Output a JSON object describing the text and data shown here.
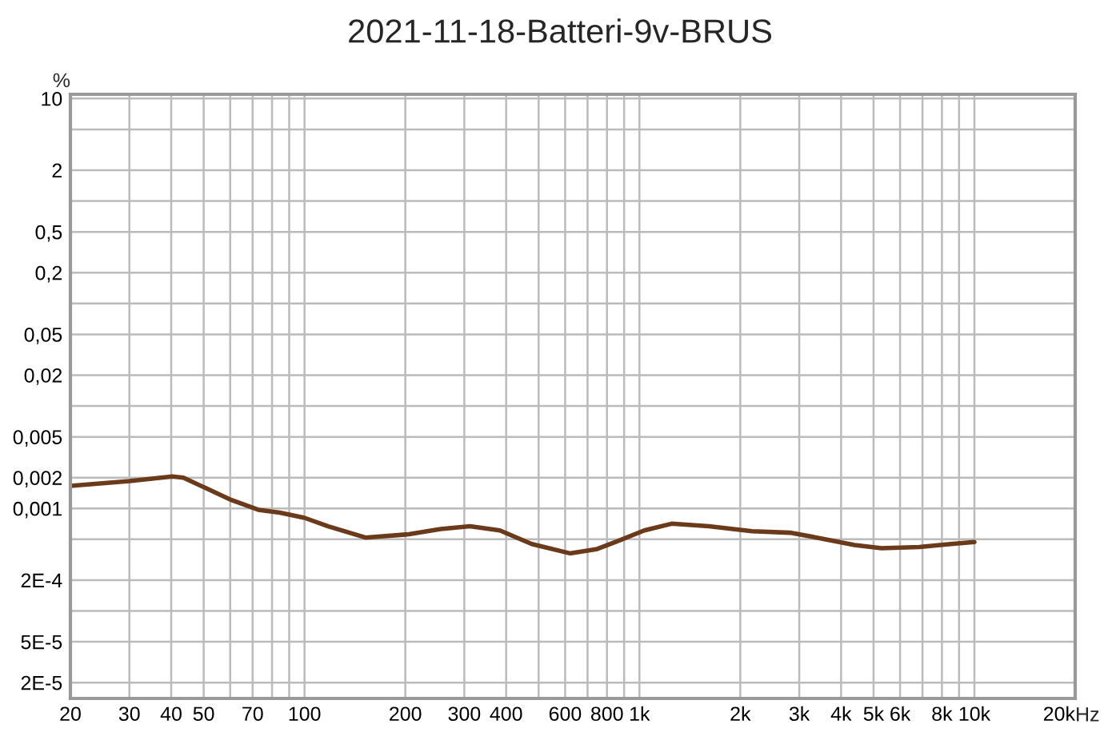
{
  "chart_data": {
    "type": "line",
    "title": "2021-11-18-Batteri-9v-BRUS",
    "ylabel": "%",
    "x": [
      20,
      30,
      40.3,
      43.5,
      50.3,
      60.5,
      72.8,
      84.4,
      100,
      117.7,
      152,
      205,
      255,
      312,
      383,
      477,
      620,
      743,
      861,
      1034,
      1247,
      1611,
      2170,
      2814,
      3380,
      4384,
      5280,
      6850,
      8500,
      10000
    ],
    "series": [
      {
        "color": "#6b3a1a",
        "values": [
          0.00166,
          0.00185,
          0.00205,
          0.002,
          0.0016,
          0.00121,
          0.00097,
          0.00091,
          0.00081,
          0.00067,
          0.00052,
          0.00056,
          0.00063,
          0.00067,
          0.00061,
          0.00045,
          0.000365,
          0.0004,
          0.00048,
          0.00061,
          0.00071,
          0.00067,
          0.0006,
          0.00058,
          0.00052,
          0.00044,
          0.00041,
          0.00042,
          0.00045,
          0.00047
        ]
      }
    ],
    "log": "xy",
    "xlim": [
      20,
      20000
    ],
    "ylim": [
      1.4e-05,
      11
    ],
    "xticks": [
      20,
      30,
      40,
      50,
      {
        "value": 60,
        "label": null
      },
      70,
      {
        "value": 80,
        "label": null
      },
      {
        "value": 90,
        "label": null
      },
      100,
      200,
      300,
      400,
      {
        "value": 500,
        "label": null
      },
      600,
      {
        "value": 700,
        "label": null
      },
      800,
      {
        "value": 900,
        "label": null
      },
      {
        "value": 1000,
        "label": "1k"
      },
      {
        "value": 2000,
        "label": "2k"
      },
      {
        "value": 3000,
        "label": "3k"
      },
      {
        "value": 4000,
        "label": "4k"
      },
      {
        "value": 5000,
        "label": "5k"
      },
      {
        "value": 6000,
        "label": "6k"
      },
      {
        "value": 7000,
        "label": null
      },
      {
        "value": 8000,
        "label": "8k"
      },
      {
        "value": 9000,
        "label": null
      },
      {
        "value": 10000,
        "label": "10k"
      },
      {
        "value": 20000,
        "label": "20k"
      }
    ],
    "xlabel": "Hz",
    "yticks": [
      10,
      {
        "value": 5,
        "label": null
      },
      2,
      {
        "value": 1,
        "label": null
      },
      {
        "value": 0.5,
        "label": "0,5"
      },
      {
        "value": 0.2,
        "label": "0,2"
      },
      {
        "value": 0.1,
        "label": null
      },
      {
        "value": 0.05,
        "label": "0,05"
      },
      {
        "value": 0.02,
        "label": "0,02"
      },
      {
        "value": 0.01,
        "label": null
      },
      {
        "value": 0.005,
        "label": "0,005"
      },
      {
        "value": 0.002,
        "label": "0,002"
      },
      {
        "value": 0.001,
        "label": "0,001"
      },
      {
        "value": 0.0005,
        "label": null
      },
      {
        "value": 0.0002,
        "label": "2E-4"
      },
      {
        "value": 0.0001,
        "label": null
      },
      {
        "value": 5e-05,
        "label": "5E-5"
      },
      {
        "value": 2e-05,
        "label": "2E-5"
      }
    ],
    "grid": true
  }
}
